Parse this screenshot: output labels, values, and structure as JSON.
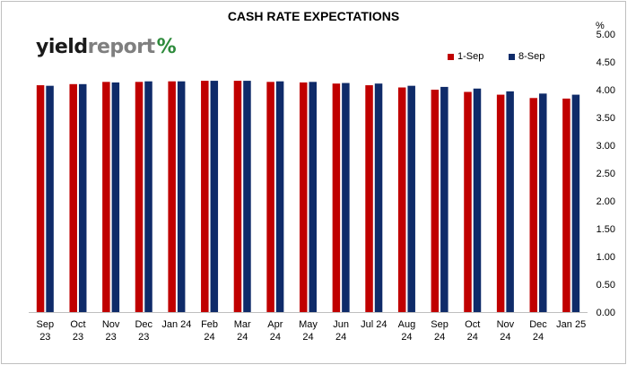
{
  "logo": {
    "part1": "yield",
    "part2": "report",
    "symbol": "%"
  },
  "chart_data": {
    "type": "bar",
    "title": "CASH RATE EXPECTATIONS",
    "unit": "%",
    "xlabel": "",
    "ylabel": "",
    "ylim": [
      0,
      5
    ],
    "yticks": [
      "0.00",
      "0.50",
      "1.00",
      "1.50",
      "2.00",
      "2.50",
      "3.00",
      "3.50",
      "4.00",
      "4.50",
      "5.00"
    ],
    "grid": false,
    "legend_position": "top-right",
    "categories": [
      [
        "Sep",
        "23"
      ],
      [
        "Oct",
        "23"
      ],
      [
        "Nov",
        "23"
      ],
      [
        "Dec",
        "23"
      ],
      [
        "Jan 24",
        ""
      ],
      [
        "Feb",
        "24"
      ],
      [
        "Mar",
        "24"
      ],
      [
        "Apr",
        "24"
      ],
      [
        "May",
        "24"
      ],
      [
        "Jun",
        "24"
      ],
      [
        "Jul 24",
        ""
      ],
      [
        "Aug",
        "24"
      ],
      [
        "Sep",
        "24"
      ],
      [
        "Oct",
        "24"
      ],
      [
        "Nov",
        "24"
      ],
      [
        "Dec",
        "24"
      ],
      [
        "Jan 25",
        ""
      ]
    ],
    "series": [
      {
        "name": "1-Sep",
        "color": "#c00000",
        "values": [
          4.08,
          4.1,
          4.14,
          4.14,
          4.15,
          4.16,
          4.16,
          4.14,
          4.13,
          4.11,
          4.08,
          4.04,
          4.0,
          3.96,
          3.91,
          3.85,
          3.84
        ]
      },
      {
        "name": "8-Sep",
        "color": "#0f2b69",
        "values": [
          4.07,
          4.1,
          4.13,
          4.15,
          4.15,
          4.16,
          4.16,
          4.15,
          4.14,
          4.12,
          4.11,
          4.07,
          4.05,
          4.02,
          3.97,
          3.93,
          3.91
        ]
      }
    ]
  }
}
